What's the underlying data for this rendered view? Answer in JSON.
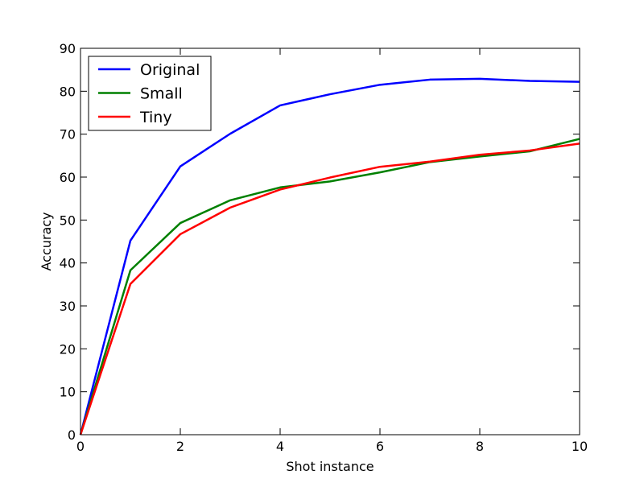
{
  "chart_data": {
    "type": "line",
    "title": "",
    "xlabel": "Shot instance",
    "ylabel": "Accuracy",
    "xlim": [
      0,
      10
    ],
    "ylim": [
      0,
      90
    ],
    "xticks": [
      0,
      2,
      4,
      6,
      8,
      10
    ],
    "yticks": [
      0,
      10,
      20,
      30,
      40,
      50,
      60,
      70,
      80,
      90
    ],
    "grid": false,
    "legend_position": "top-left",
    "x": [
      0,
      1,
      2,
      3,
      4,
      5,
      6,
      7,
      8,
      9,
      10
    ],
    "series": [
      {
        "name": "Original",
        "color": "#0000ff",
        "values": [
          0,
          45.2,
          62.5,
          70.1,
          76.7,
          79.3,
          81.5,
          82.7,
          82.9,
          82.4,
          82.2
        ]
      },
      {
        "name": "Small",
        "color": "#008000",
        "values": [
          0,
          38.3,
          49.3,
          54.6,
          57.6,
          59.0,
          61.1,
          63.5,
          64.8,
          66.0,
          68.9
        ]
      },
      {
        "name": "Tiny",
        "color": "#ff0000",
        "values": [
          0,
          35.1,
          46.7,
          52.9,
          57.1,
          59.9,
          62.4,
          63.6,
          65.2,
          66.2,
          67.8
        ]
      }
    ]
  }
}
